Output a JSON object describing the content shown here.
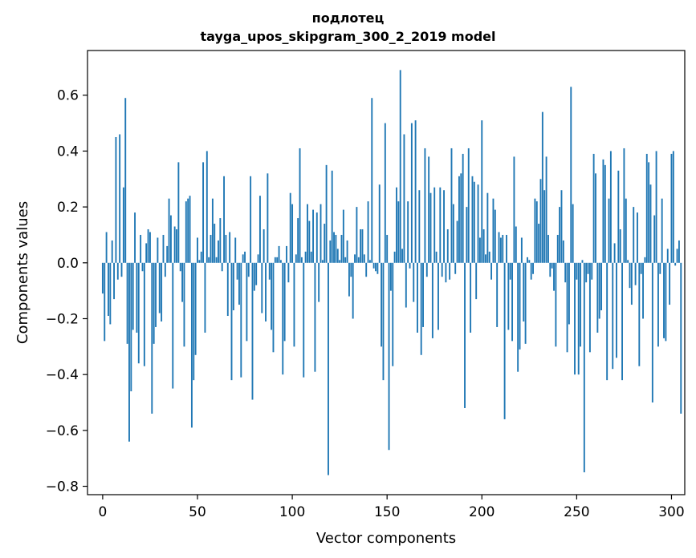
{
  "chart_data": {
    "type": "bar",
    "title_line1": "подлотец",
    "title_line2": "tayga_upos_skipgram_300_2_2019 model",
    "xlabel": "Vector components",
    "ylabel": "Components values",
    "xlim": [
      -8,
      307
    ],
    "ylim": [
      -0.83,
      0.76
    ],
    "xticks": [
      0,
      50,
      100,
      150,
      200,
      250,
      300
    ],
    "yticks": [
      -0.8,
      -0.6,
      -0.4,
      -0.2,
      0.0,
      0.2,
      0.4,
      0.6
    ],
    "ytick_labels": [
      "−0.8",
      "−0.6",
      "−0.4",
      "−0.2",
      "0.0",
      "0.2",
      "0.4",
      "0.6"
    ],
    "bar_color": "#1f77b4",
    "grid": false,
    "values": [
      -0.11,
      -0.28,
      0.11,
      -0.19,
      -0.22,
      0.08,
      -0.13,
      0.45,
      -0.06,
      0.46,
      -0.05,
      0.27,
      0.59,
      -0.29,
      -0.64,
      -0.46,
      -0.24,
      0.18,
      -0.25,
      -0.36,
      0.1,
      -0.03,
      -0.37,
      0.07,
      0.12,
      0.11,
      -0.54,
      -0.29,
      -0.23,
      0.09,
      -0.18,
      -0.21,
      0.1,
      -0.05,
      0.06,
      0.23,
      0.17,
      -0.45,
      0.13,
      0.12,
      0.36,
      -0.03,
      -0.14,
      -0.3,
      0.22,
      0.23,
      0.24,
      -0.59,
      -0.42,
      -0.33,
      0.09,
      0.01,
      0.04,
      0.36,
      -0.25,
      0.4,
      0.02,
      0.1,
      0.23,
      0.14,
      0.02,
      0.08,
      0.16,
      -0.03,
      0.31,
      0.1,
      -0.19,
      0.11,
      -0.42,
      -0.17,
      0.09,
      -0.06,
      -0.15,
      -0.41,
      0.03,
      0.04,
      -0.28,
      -0.05,
      0.31,
      -0.49,
      -0.1,
      -0.08,
      0.03,
      0.24,
      -0.18,
      0.12,
      -0.21,
      0.32,
      -0.06,
      -0.24,
      -0.32,
      0.02,
      0.02,
      0.06,
      0.01,
      -0.4,
      -0.28,
      0.06,
      -0.07,
      0.25,
      0.21,
      -0.3,
      0.03,
      0.16,
      0.41,
      0.02,
      -0.41,
      0.04,
      0.21,
      0.15,
      0.04,
      0.19,
      -0.39,
      0.18,
      -0.14,
      0.21,
      0.01,
      0.14,
      0.35,
      -0.76,
      0.08,
      0.33,
      0.11,
      0.1,
      0.05,
      0.01,
      0.1,
      0.19,
      0.02,
      0.08,
      -0.12,
      -0.05,
      -0.2,
      0.03,
      0.2,
      0.02,
      0.12,
      0.12,
      0.03,
      -0.05,
      0.22,
      0.01,
      0.59,
      -0.02,
      -0.03,
      -0.04,
      0.28,
      -0.3,
      -0.42,
      0.5,
      0.1,
      -0.67,
      -0.1,
      -0.37,
      0.04,
      0.27,
      0.22,
      0.69,
      0.05,
      0.46,
      -0.16,
      0.22,
      -0.02,
      0.5,
      -0.14,
      0.51,
      -0.25,
      0.26,
      -0.33,
      -0.23,
      0.41,
      -0.05,
      0.38,
      0.25,
      -0.27,
      0.27,
      0.04,
      -0.24,
      0.27,
      -0.05,
      0.26,
      -0.07,
      0.12,
      -0.06,
      0.41,
      0.21,
      -0.04,
      0.15,
      0.31,
      0.32,
      0.39,
      -0.52,
      0.2,
      0.41,
      -0.25,
      0.31,
      0.29,
      -0.13,
      0.28,
      0.09,
      0.51,
      0.12,
      0.03,
      0.25,
      0.04,
      -0.06,
      0.23,
      0.19,
      -0.23,
      0.11,
      0.09,
      0.1,
      -0.56,
      0.1,
      -0.24,
      -0.06,
      -0.28,
      0.38,
      0.13,
      -0.39,
      -0.31,
      0.09,
      -0.21,
      -0.29,
      0.02,
      0.01,
      -0.06,
      -0.04,
      0.23,
      0.22,
      0.14,
      0.3,
      0.54,
      0.26,
      0.38,
      0.1,
      -0.05,
      -0.02,
      -0.1,
      -0.3,
      0.1,
      0.2,
      0.26,
      0.08,
      -0.07,
      -0.32,
      -0.22,
      0.63,
      0.21,
      -0.4,
      -0.06,
      -0.4,
      -0.3,
      0.01,
      -0.75,
      -0.07,
      -0.04,
      -0.32,
      -0.06,
      0.39,
      0.32,
      -0.25,
      -0.2,
      -0.17,
      0.37,
      0.35,
      -0.42,
      0.23,
      0.4,
      -0.38,
      0.07,
      -0.34,
      0.33,
      0.12,
      -0.42,
      0.41,
      0.23,
      0.01,
      -0.09,
      -0.15,
      0.2,
      -0.08,
      0.18,
      -0.37,
      -0.04,
      -0.2,
      0.02,
      0.39,
      0.36,
      0.28,
      -0.5,
      0.17,
      0.4,
      -0.3,
      -0.04,
      0.23,
      -0.27,
      -0.28,
      0.05,
      -0.15,
      0.39,
      0.4,
      -0.01,
      0.05,
      0.08,
      -0.54
    ]
  }
}
